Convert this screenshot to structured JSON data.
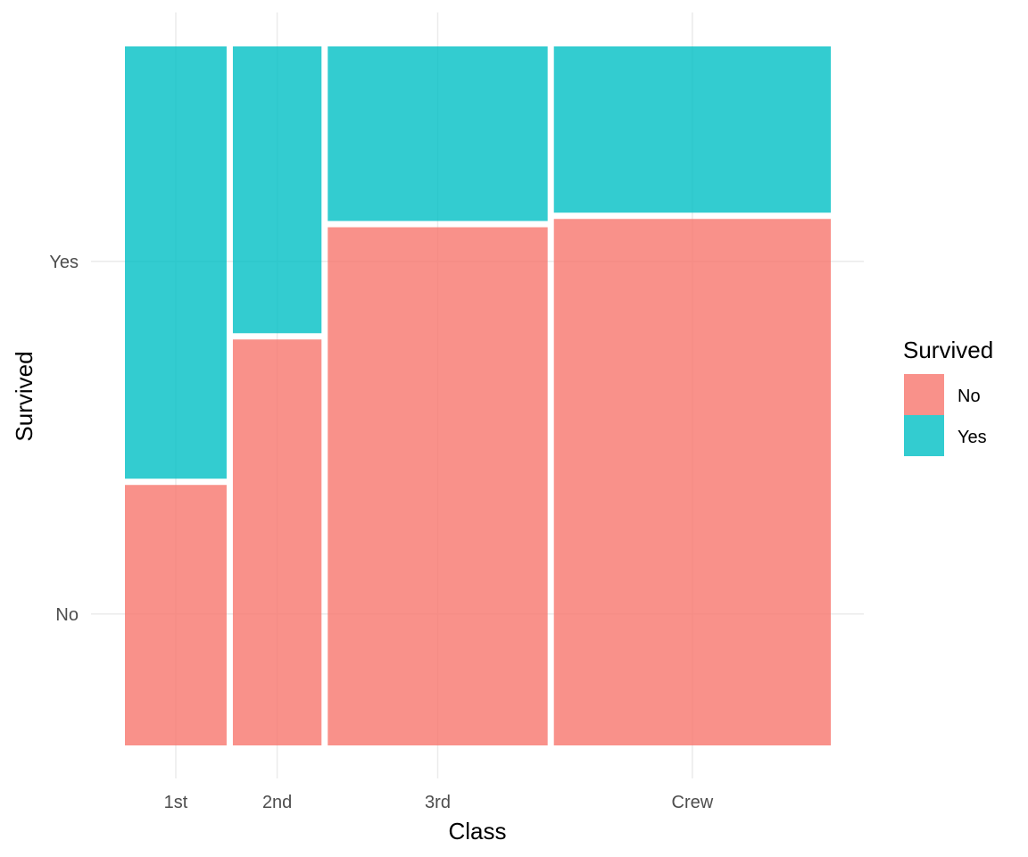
{
  "chart_data": {
    "type": "mosaic",
    "xlabel": "Class",
    "ylabel": "Survived",
    "categories": [
      "1st",
      "2nd",
      "3rd",
      "Crew"
    ],
    "category_shares": [
      0.148,
      0.129,
      0.32,
      0.403
    ],
    "fill_levels": [
      "No",
      "Yes"
    ],
    "series": [
      {
        "name": "No",
        "values": [
          0.376,
          0.586,
          0.748,
          0.76
        ]
      },
      {
        "name": "Yes",
        "values": [
          0.624,
          0.414,
          0.252,
          0.24
        ]
      }
    ],
    "y_ticks": [
      "No",
      "Yes"
    ],
    "grid": true,
    "legend": {
      "title": "Survived",
      "position": "right",
      "entries": [
        "No",
        "Yes"
      ]
    },
    "colors": {
      "No": "#F8766D",
      "Yes": "#00BFC4"
    },
    "fill_opacity": 0.8
  }
}
